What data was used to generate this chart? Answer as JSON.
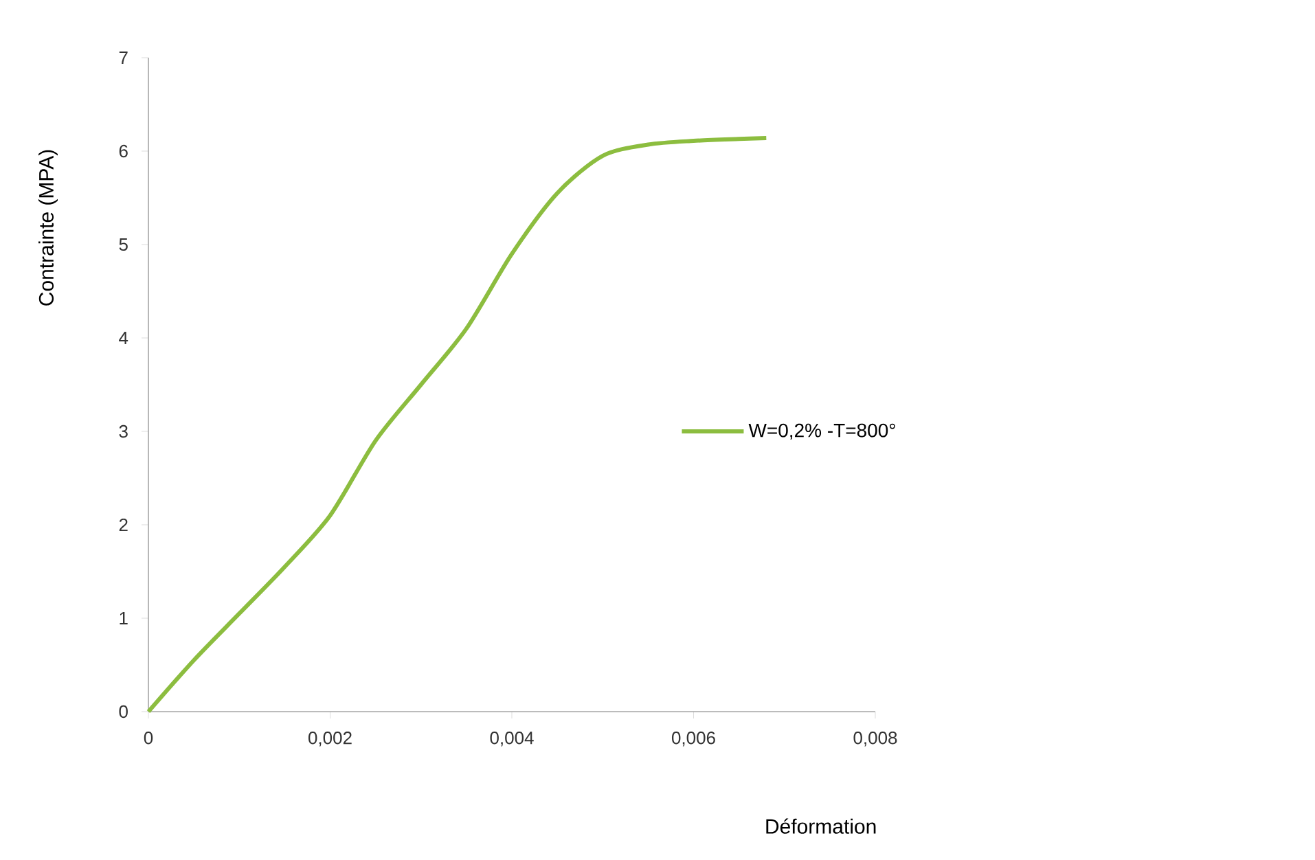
{
  "chart_data": {
    "type": "line",
    "xlabel": "Déformation",
    "ylabel": "Contrainte (MPA)",
    "x": [
      0,
      0.0005,
      0.001,
      0.0015,
      0.002,
      0.0025,
      0.003,
      0.0035,
      0.004,
      0.0045,
      0.005,
      0.0055,
      0.006,
      0.0065,
      0.0068
    ],
    "series": [
      {
        "name": "W=0,2% -T=800°",
        "color": "#8cbd3f",
        "values": [
          0,
          0.55,
          1.05,
          1.55,
          2.1,
          2.9,
          3.5,
          4.1,
          4.9,
          5.55,
          5.95,
          6.07,
          6.11,
          6.13,
          6.14
        ]
      }
    ],
    "xlim": [
      0,
      0.008
    ],
    "ylim": [
      0,
      7
    ],
    "xticks": [
      {
        "value": 0,
        "label": "0"
      },
      {
        "value": 0.002,
        "label": "0,002"
      },
      {
        "value": 0.004,
        "label": "0,004"
      },
      {
        "value": 0.006,
        "label": "0,006"
      },
      {
        "value": 0.008,
        "label": "0,008"
      }
    ],
    "yticks": [
      0,
      1,
      2,
      3,
      4,
      5,
      6,
      7
    ],
    "grid": false,
    "legend": "right",
    "marker": "none",
    "line_style": "solid"
  }
}
